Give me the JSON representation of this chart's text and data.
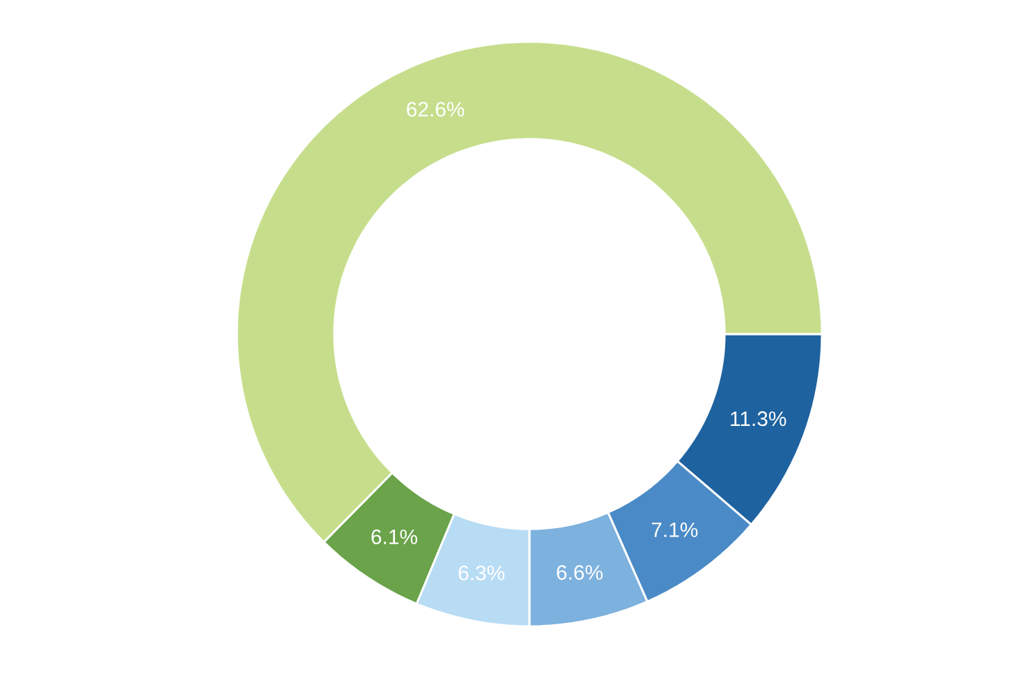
{
  "chart_data": {
    "type": "donut",
    "categories": [
      null,
      null,
      null,
      null,
      null,
      null
    ],
    "values": [
      11.3,
      7.1,
      6.6,
      6.3,
      6.1,
      62.6
    ],
    "colors": [
      "#1e62a0",
      "#4a8ac6",
      "#7db1de",
      "#b9dcf5",
      "#6aa34a",
      "#c6de8c"
    ],
    "value_labels": [
      "11.3%",
      "7.1%",
      "6.6%",
      "6.3%",
      "6.1%",
      "62.6%"
    ]
  }
}
